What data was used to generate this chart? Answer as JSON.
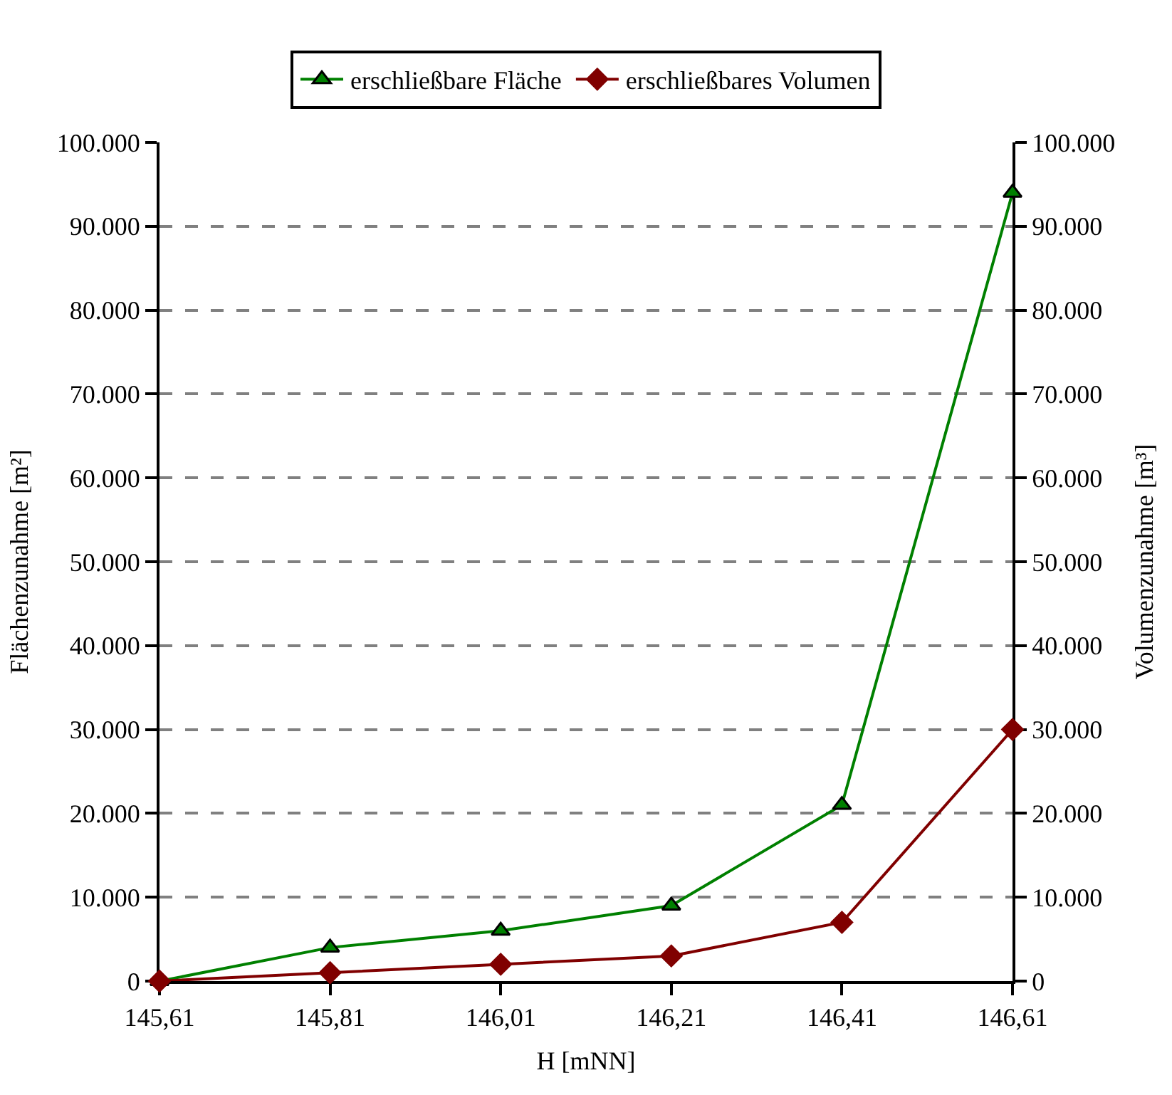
{
  "chart_data": {
    "type": "line",
    "xlabel": "H [mNN]",
    "ylabel": "Flächenzunahme [m²]",
    "y2label": "Volumenzunahme [m³]",
    "x": [
      145.61,
      145.81,
      146.01,
      146.21,
      146.41,
      146.61
    ],
    "series": [
      {
        "name": "erschließbare Fläche",
        "color": "#008000",
        "marker": "triangle",
        "values": [
          0,
          4000,
          6000,
          9000,
          21000,
          94000
        ]
      },
      {
        "name": "erschließbares Volumen",
        "color": "#800000",
        "marker": "diamond",
        "axis": "y2",
        "values": [
          0,
          1000,
          2000,
          3000,
          7000,
          30000
        ]
      }
    ],
    "xlim": [
      145.61,
      146.61
    ],
    "xticks": [
      {
        "value": 145.61,
        "label": "145,61"
      },
      {
        "value": 145.81,
        "label": "145,81"
      },
      {
        "value": 146.01,
        "label": "146,01"
      },
      {
        "value": 146.21,
        "label": "146,21"
      },
      {
        "value": 146.41,
        "label": "146,41"
      },
      {
        "value": 146.61,
        "label": "146,61"
      }
    ],
    "ylim": [
      0,
      100000
    ],
    "yticks": [
      0,
      {
        "value": 10000,
        "label": "10.000"
      },
      {
        "value": 20000,
        "label": "20.000"
      },
      {
        "value": 30000,
        "label": "30.000"
      },
      {
        "value": 40000,
        "label": "40.000"
      },
      {
        "value": 50000,
        "label": "50.000"
      },
      {
        "value": 60000,
        "label": "60.000"
      },
      {
        "value": 70000,
        "label": "70.000"
      },
      {
        "value": 80000,
        "label": "80.000"
      },
      {
        "value": 90000,
        "label": "90.000"
      },
      {
        "value": 100000,
        "label": "100.000"
      }
    ],
    "y2lim": [
      0,
      100000
    ],
    "y2ticks": [
      0,
      {
        "value": 10000,
        "label": "10.000"
      },
      {
        "value": 20000,
        "label": "20.000"
      },
      {
        "value": 30000,
        "label": "30.000"
      },
      {
        "value": 40000,
        "label": "40.000"
      },
      {
        "value": 50000,
        "label": "50.000"
      },
      {
        "value": 60000,
        "label": "60.000"
      },
      {
        "value": 70000,
        "label": "70.000"
      },
      {
        "value": 80000,
        "label": "80.000"
      },
      {
        "value": 90000,
        "label": "90.000"
      },
      {
        "value": 100000,
        "label": "100.000"
      }
    ],
    "grid": "y",
    "legend": "top",
    "line_style": "solid"
  }
}
